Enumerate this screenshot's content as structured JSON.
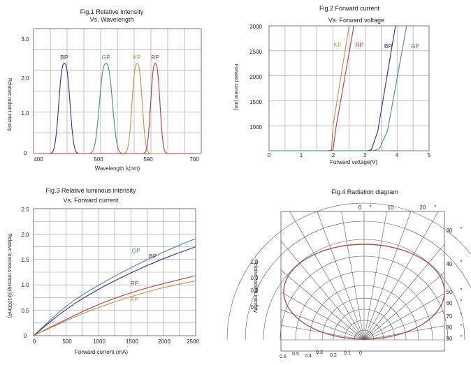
{
  "chart_data": [
    {
      "type": "line",
      "title": "Fig.1 Relative intensity",
      "subtitle": "Vs. Wavelength",
      "xlabel": "Wavelength λ(nm)",
      "ylabel": "Relative radiant intensity",
      "xlim": [
        400,
        700
      ],
      "ylim": [
        0,
        3.0
      ],
      "xticks": [
        "400",
        "500",
        "590",
        "700"
      ],
      "yticks": [
        "0",
        "1.0",
        "2.0",
        "3.0"
      ],
      "grid": true,
      "series": [
        {
          "name": "BP",
          "color": "#2d2d8f",
          "peak": 450,
          "fwhm": 24,
          "amplitude": 2.35
        },
        {
          "name": "GP",
          "color": "#4d8a73",
          "peak": 530,
          "fwhm": 28,
          "amplitude": 2.35
        },
        {
          "name": "KP",
          "color": "#b89152",
          "peak": 590,
          "fwhm": 22,
          "amplitude": 2.35
        },
        {
          "name": "RP",
          "color": "#b03a45",
          "peak": 625,
          "fwhm": 20,
          "amplitude": 2.35
        }
      ]
    },
    {
      "type": "line",
      "title": "Fig.2 Forward current",
      "subtitle": "Vs. Forward voltage",
      "xlabel": "Forward voltage(V)",
      "ylabel": "Forward current (mA)",
      "xlim": [
        0,
        5
      ],
      "ylim": [
        500,
        3000
      ],
      "xticks": [
        "0",
        "1",
        "2",
        "3",
        "4",
        "5"
      ],
      "yticks": [
        "1000",
        "1500",
        "2000",
        "2500",
        "3000"
      ],
      "grid": true,
      "series": [
        {
          "name": "KP",
          "color": "#b89152",
          "points": [
            [
              0,
              500
            ],
            [
              1.8,
              500
            ],
            [
              1.95,
              510
            ],
            [
              2.0,
              1000
            ],
            [
              2.5,
              3000
            ]
          ]
        },
        {
          "name": "RP",
          "color": "#b03a45",
          "points": [
            [
              0,
              500
            ],
            [
              1.85,
              500
            ],
            [
              2.0,
              520
            ],
            [
              2.1,
              1000
            ],
            [
              2.65,
              3000
            ]
          ]
        },
        {
          "name": "BP",
          "color": "#2d2d8f",
          "points": [
            [
              0,
              500
            ],
            [
              3.05,
              500
            ],
            [
              3.2,
              520
            ],
            [
              3.4,
              900
            ],
            [
              3.95,
              3000
            ]
          ]
        },
        {
          "name": "GP",
          "color": "#4d8a73",
          "points": [
            [
              0,
              500
            ],
            [
              3.25,
              500
            ],
            [
              3.45,
              540
            ],
            [
              3.7,
              900
            ],
            [
              4.3,
              3000
            ]
          ]
        }
      ]
    },
    {
      "type": "line",
      "title": "Fig.3 Relative luminous intensity",
      "subtitle": "Vs. Forward current",
      "xlabel": "Forward current (mA)",
      "ylabel": "Relative luminous intensity(@1000mA)",
      "xlim": [
        0,
        2500
      ],
      "ylim": [
        0,
        2.5
      ],
      "xticks": [
        "0",
        "500",
        "1000",
        "1500",
        "2000",
        "2500"
      ],
      "yticks": [
        "0",
        "0.5",
        "1.0",
        "1.5",
        "2.0",
        "2.5"
      ],
      "grid": true,
      "series": [
        {
          "name": "GP",
          "color": "#4d8a73",
          "points": [
            [
              0,
              0
            ],
            [
              500,
              0.6
            ],
            [
              1000,
              1.0
            ],
            [
              1500,
              1.34
            ],
            [
              2000,
              1.65
            ],
            [
              2500,
              1.91
            ]
          ]
        },
        {
          "name": "BP",
          "color": "#2d2d8f",
          "points": [
            [
              0,
              0
            ],
            [
              500,
              0.53
            ],
            [
              1000,
              0.92
            ],
            [
              1500,
              1.24
            ],
            [
              2000,
              1.52
            ],
            [
              2500,
              1.75
            ]
          ]
        },
        {
          "name": "RP",
          "color": "#b03a45",
          "points": [
            [
              0,
              0
            ],
            [
              500,
              0.32
            ],
            [
              1000,
              0.62
            ],
            [
              1500,
              0.85
            ],
            [
              2000,
              1.03
            ],
            [
              2500,
              1.18
            ]
          ]
        },
        {
          "name": "KP",
          "color": "#b89152",
          "points": [
            [
              0,
              0
            ],
            [
              500,
              0.3
            ],
            [
              1000,
              0.56
            ],
            [
              1500,
              0.77
            ],
            [
              2000,
              0.95
            ],
            [
              2500,
              1.08
            ]
          ]
        }
      ]
    },
    {
      "type": "polar",
      "title": "Fig.4  Radiation diagram",
      "ylabel": "Relative radiant intensity",
      "angle_labels_top": [
        "0",
        "°",
        "10",
        "20",
        "°"
      ],
      "angle_labels_right": [
        "30",
        "40",
        "50",
        "60",
        "70",
        "80",
        "90"
      ],
      "degree_mark": "°",
      "radial_labels_left": [
        "1.0",
        "0.9",
        "0.8",
        "0.7"
      ],
      "bottom_labels": [
        "0.6",
        "0.5",
        "0.4",
        "0.3",
        "0.2",
        "0.1",
        "0"
      ],
      "curve": {
        "color": "#9b5a4e",
        "shape": "ellipse",
        "relative_width": 1.0,
        "relative_height": 0.55
      }
    }
  ]
}
